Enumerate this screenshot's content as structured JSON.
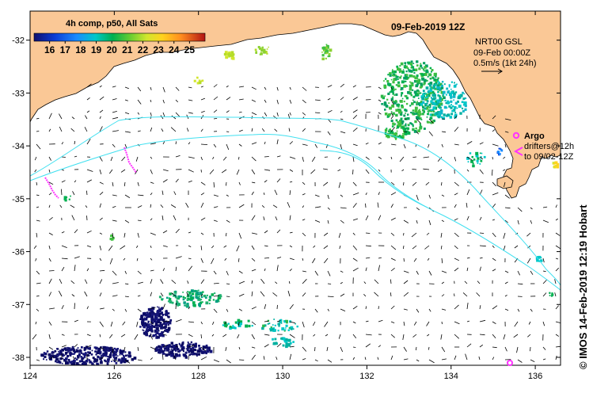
{
  "map": {
    "title": "09-Feb-2019 12Z",
    "product": "4h comp, p50, All Sats",
    "colorbar": {
      "ticks": [
        "16",
        "17",
        "18",
        "19",
        "20",
        "21",
        "22",
        "23",
        "24",
        "25"
      ],
      "min": 15,
      "max": 26,
      "colors": [
        "#1b1b8c",
        "#0b3fd9",
        "#1a8cff",
        "#00c8c8",
        "#00b050",
        "#4cc832",
        "#c8e632",
        "#ffd21e",
        "#ff8c1e",
        "#e84a14",
        "#b21414"
      ]
    },
    "gsl_note": [
      "NRT00 GSL",
      "09-Feb 00:00Z",
      "0.5m/s (1kt 24h)"
    ],
    "legend": {
      "argo_label": "Argo",
      "argo_color": "#ff33ff",
      "drifter_label_1": "drifters@12h",
      "drifter_label_2": "to 09/02-12Z",
      "drifter_color": "#ff33ff"
    },
    "x_ticks": [
      "124",
      "126",
      "128",
      "130",
      "132",
      "134",
      "136"
    ],
    "y_ticks": [
      "-32",
      "-33",
      "-34",
      "-35",
      "-36",
      "-37",
      "-38"
    ],
    "extent": {
      "lon": [
        124,
        136.6
      ],
      "lat": [
        -38.15,
        -31.45
      ]
    },
    "land_color": "#fac896",
    "contour_color": "#40e0f0",
    "side_credit": "© IMOS 14-Feb-2019 12:19 Hobart"
  }
}
